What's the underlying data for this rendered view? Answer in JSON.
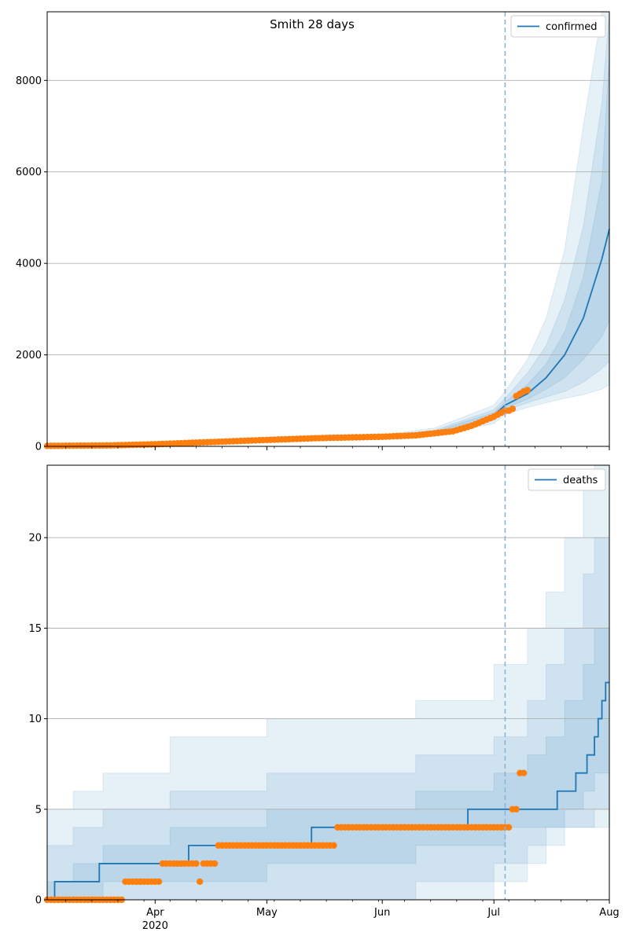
{
  "figure": {
    "title": "Smith 28 days"
  },
  "colors": {
    "line": "#1f77b4",
    "observed": "#ff7f0e",
    "band": "#1f77b4",
    "grid": "#b0b0b0",
    "forecast_line": "#8ab4d4"
  },
  "x_ticks": [
    {
      "date": "2020-04-01",
      "label": "Apr",
      "sublabel": "2020"
    },
    {
      "date": "2020-05-01",
      "label": "May"
    },
    {
      "date": "2020-06-01",
      "label": "Jun"
    },
    {
      "date": "2020-07-01",
      "label": "Jul"
    },
    {
      "date": "2020-08-01",
      "label": "Aug"
    }
  ],
  "chart_data": [
    {
      "type": "line",
      "legend": [
        "confirmed"
      ],
      "legend_position": "top-right",
      "grid": "horizontal",
      "xlim": [
        "2020-03-03",
        "2020-08-01"
      ],
      "ylim": [
        0,
        9500
      ],
      "y_ticks": [
        0,
        2000,
        4000,
        6000,
        8000
      ],
      "forecast_start": "2020-07-04",
      "series": [
        {
          "name": "confirmed",
          "kind": "forecast median",
          "x": [
            "2020-03-03",
            "2020-04-01",
            "2020-05-01",
            "2020-06-01",
            "2020-06-20",
            "2020-07-01",
            "2020-07-04",
            "2020-07-10",
            "2020-07-15",
            "2020-07-20",
            "2020-07-25",
            "2020-07-30",
            "2020-08-01"
          ],
          "y": [
            10,
            45,
            140,
            210,
            300,
            680,
            900,
            1150,
            1500,
            2000,
            2800,
            4100,
            4750
          ]
        }
      ],
      "bands": [
        {
          "level": "outer",
          "x": [
            "2020-03-03",
            "2020-06-01",
            "2020-06-15",
            "2020-07-01",
            "2020-07-04",
            "2020-07-10",
            "2020-07-15",
            "2020-07-20",
            "2020-07-25",
            "2020-07-30",
            "2020-08-01"
          ],
          "lower": [
            0,
            160,
            230,
            500,
            700,
            850,
            950,
            1050,
            1130,
            1250,
            1350
          ],
          "upper": [
            30,
            250,
            400,
            900,
            1200,
            1900,
            2800,
            4300,
            7000,
            9500,
            9500
          ]
        },
        {
          "level": "middle",
          "x": [
            "2020-03-03",
            "2020-06-01",
            "2020-06-15",
            "2020-07-01",
            "2020-07-04",
            "2020-07-10",
            "2020-07-15",
            "2020-07-20",
            "2020-07-25",
            "2020-07-30",
            "2020-08-01"
          ],
          "lower": [
            0,
            180,
            260,
            570,
            780,
            950,
            1080,
            1200,
            1400,
            1700,
            1850
          ],
          "upper": [
            25,
            230,
            350,
            800,
            1050,
            1600,
            2200,
            3200,
            4800,
            7500,
            9500
          ]
        },
        {
          "level": "inner",
          "x": [
            "2020-03-03",
            "2020-06-01",
            "2020-06-15",
            "2020-07-01",
            "2020-07-04",
            "2020-07-10",
            "2020-07-15",
            "2020-07-20",
            "2020-07-25",
            "2020-07-30",
            "2020-08-01"
          ],
          "lower": [
            5,
            195,
            280,
            620,
            840,
            1030,
            1250,
            1500,
            1900,
            2400,
            2750
          ],
          "upper": [
            15,
            215,
            320,
            740,
            970,
            1350,
            1800,
            2500,
            3700,
            5800,
            8500
          ]
        }
      ],
      "observed_anchor_dates": [
        "2020-03-03",
        "2020-03-20",
        "2020-04-01",
        "2020-04-15",
        "2020-05-01",
        "2020-05-15",
        "2020-06-01",
        "2020-06-10",
        "2020-06-20",
        "2020-06-25",
        "2020-07-01",
        "2020-07-04"
      ],
      "observed_anchor_values": [
        10,
        20,
        45,
        90,
        140,
        180,
        210,
        240,
        330,
        450,
        650,
        780
      ],
      "observed_extra": [
        {
          "x": "2020-07-05",
          "y": 780
        },
        {
          "x": "2020-07-06",
          "y": 820
        },
        {
          "x": "2020-07-07",
          "y": 1100
        },
        {
          "x": "2020-07-08",
          "y": 1150
        },
        {
          "x": "2020-07-09",
          "y": 1200
        },
        {
          "x": "2020-07-10",
          "y": 1230
        }
      ]
    },
    {
      "type": "line",
      "legend": [
        "deaths"
      ],
      "legend_position": "top-right",
      "grid": "horizontal",
      "xlim": [
        "2020-03-03",
        "2020-08-01"
      ],
      "ylim": [
        0,
        24
      ],
      "y_ticks": [
        0,
        5,
        10,
        15,
        20
      ],
      "forecast_start": "2020-07-04",
      "series": [
        {
          "name": "deaths",
          "kind": "step median",
          "x": [
            "2020-03-03",
            "2020-03-05",
            "2020-03-17",
            "2020-04-10",
            "2020-05-13",
            "2020-06-24",
            "2020-07-13",
            "2020-07-18",
            "2020-07-23",
            "2020-07-26",
            "2020-07-28",
            "2020-07-29",
            "2020-07-30",
            "2020-07-31",
            "2020-08-01"
          ],
          "y": [
            0,
            1,
            2,
            3,
            4,
            5,
            5,
            6,
            7,
            8,
            9,
            10,
            11,
            12,
            12
          ]
        }
      ],
      "bands": [
        {
          "level": "outer",
          "x": [
            "2020-03-03",
            "2020-03-10",
            "2020-03-18",
            "2020-04-05",
            "2020-05-01",
            "2020-06-10",
            "2020-07-01",
            "2020-07-04",
            "2020-07-10",
            "2020-07-15",
            "2020-07-20",
            "2020-07-25",
            "2020-07-28",
            "2020-08-01"
          ],
          "lower": [
            0,
            0,
            0,
            0,
            0,
            0,
            1,
            1,
            2,
            3,
            4,
            4,
            4,
            4
          ],
          "upper": [
            5,
            6,
            7,
            9,
            10,
            11,
            13,
            13,
            15,
            17,
            20,
            23,
            24,
            24
          ]
        },
        {
          "level": "middle",
          "x": [
            "2020-03-03",
            "2020-03-10",
            "2020-03-18",
            "2020-04-05",
            "2020-05-01",
            "2020-06-10",
            "2020-07-01",
            "2020-07-04",
            "2020-07-10",
            "2020-07-15",
            "2020-07-20",
            "2020-07-25",
            "2020-07-28",
            "2020-08-01"
          ],
          "lower": [
            0,
            0,
            0,
            0,
            0,
            1,
            2,
            2,
            3,
            4,
            4,
            4,
            5,
            6
          ],
          "upper": [
            3,
            4,
            5,
            6,
            7,
            8,
            9,
            9,
            11,
            13,
            15,
            18,
            20,
            24
          ]
        },
        {
          "level": "inner",
          "x": [
            "2020-03-03",
            "2020-03-10",
            "2020-03-18",
            "2020-04-05",
            "2020-05-01",
            "2020-06-10",
            "2020-07-01",
            "2020-07-04",
            "2020-07-10",
            "2020-07-15",
            "2020-07-20",
            "2020-07-25",
            "2020-07-28",
            "2020-08-01"
          ],
          "lower": [
            0,
            0,
            1,
            1,
            2,
            3,
            3,
            4,
            4,
            4,
            5,
            6,
            7,
            8
          ],
          "upper": [
            1,
            2,
            3,
            4,
            5,
            6,
            7,
            7,
            8,
            9,
            11,
            13,
            15,
            19
          ]
        }
      ],
      "observed_segments": [
        {
          "start": "2020-03-03",
          "end": "2020-03-23",
          "y": 0
        },
        {
          "start": "2020-03-24",
          "end": "2020-04-02",
          "y": 1
        },
        {
          "start": "2020-04-03",
          "end": "2020-04-12",
          "y": 2
        },
        {
          "start": "2020-04-13",
          "end": "2020-04-13",
          "y": 1
        },
        {
          "start": "2020-04-14",
          "end": "2020-04-17",
          "y": 2
        },
        {
          "start": "2020-04-18",
          "end": "2020-05-19",
          "y": 3
        },
        {
          "start": "2020-05-20",
          "end": "2020-07-05",
          "y": 4
        },
        {
          "start": "2020-07-06",
          "end": "2020-07-07",
          "y": 5
        },
        {
          "start": "2020-07-08",
          "end": "2020-07-09",
          "y": 7
        }
      ]
    }
  ]
}
